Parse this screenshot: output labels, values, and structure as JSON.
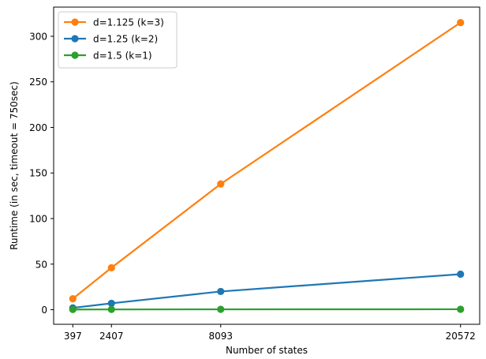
{
  "chart_data": {
    "type": "line",
    "xlabel": "Number of states",
    "ylabel": "Runtime (in sec, timeout = 750sec)",
    "x": [
      397,
      2407,
      8093,
      20572
    ],
    "xticks": [
      "397",
      "2407",
      "8093",
      "20572"
    ],
    "yticks": [
      "0",
      "50",
      "100",
      "150",
      "200",
      "250",
      "300"
    ],
    "xlim": [
      -600,
      21569
    ],
    "ylim": [
      -16,
      332
    ],
    "grid": false,
    "legend_position": "top-left",
    "series": [
      {
        "name": "d=1.125 (k=3)",
        "color": "#ff7f0e",
        "values": [
          12,
          46,
          138,
          315
        ]
      },
      {
        "name": "d=1.25 (k=2)",
        "color": "#1f77b4",
        "values": [
          2,
          7,
          20,
          39
        ]
      },
      {
        "name": "d=1.5 (k=1)",
        "color": "#2ca02c",
        "values": [
          0.2,
          0.3,
          0.4,
          0.5
        ]
      }
    ]
  }
}
